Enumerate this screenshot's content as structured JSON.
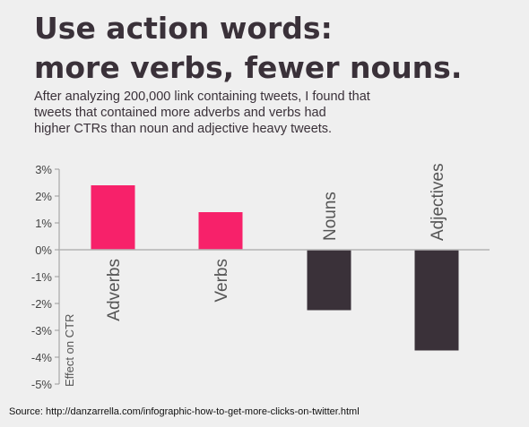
{
  "title_line1": "Use action words:",
  "title_line2": "more verbs, fewer nouns.",
  "subtitle_line1": "After analyzing 200,000 link containing tweets, I found that",
  "subtitle_line2": "tweets that contained more adverbs and verbs had",
  "subtitle_line3": "higher CTRs than noun and adjective heavy tweets.",
  "source": "Source:  http://danzarrella.com/infographic-how-to-get-more-clicks-on-twitter.html",
  "colors": {
    "positive": "#f7216a",
    "negative": "#3a3139",
    "background": "#efefef"
  },
  "chart_data": {
    "type": "bar",
    "categories": [
      "Adverbs",
      "Verbs",
      "Nouns",
      "Adjectives"
    ],
    "values": [
      2.4,
      1.4,
      -2.25,
      -3.75
    ],
    "ylabel": "Effect on CTR",
    "ylim": [
      -5,
      3
    ],
    "yticks": [
      "3%",
      "2%",
      "1%",
      "0%",
      "-1%",
      "-2%",
      "-3%",
      "-4%",
      "-5%"
    ],
    "grid": false
  }
}
